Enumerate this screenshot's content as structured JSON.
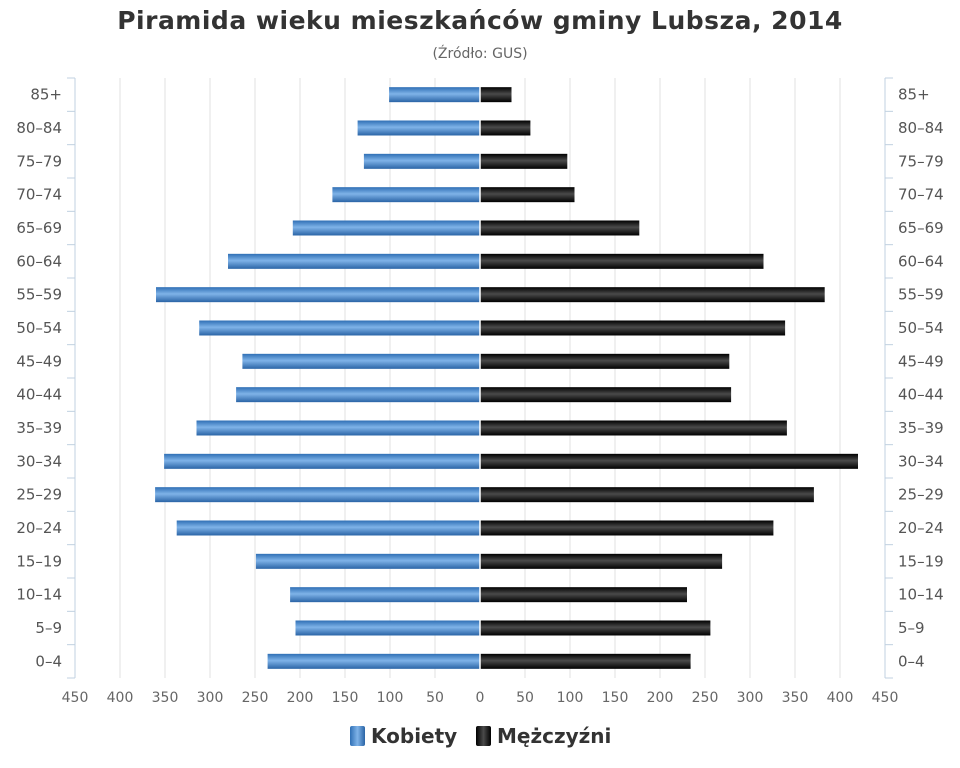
{
  "title": "Piramida wieku mieszkańców gminy Lubsza, 2014",
  "subtitle": "(Źródło: GUS)",
  "chart_data": {
    "type": "bar",
    "orientation": "horizontal-pyramid",
    "categories": [
      "0-4",
      "5-9",
      "10-14",
      "15-19",
      "20-24",
      "25-29",
      "30-34",
      "35-39",
      "40-44",
      "45-49",
      "50-54",
      "55-59",
      "60-64",
      "65-69",
      "70-74",
      "75-79",
      "80-84",
      "85+"
    ],
    "category_labels": [
      "0–4",
      "5–9",
      "10–14",
      "15–19",
      "20–24",
      "25–29",
      "30–34",
      "35–39",
      "40–44",
      "45–49",
      "50–54",
      "55–59",
      "60–64",
      "65–69",
      "70–74",
      "75–79",
      "80–84",
      "85+"
    ],
    "series": [
      {
        "name": "Kobiety",
        "side": "left",
        "color": "#4a8fd4",
        "values": [
          236,
          205,
          211,
          249,
          337,
          361,
          351,
          315,
          271,
          264,
          312,
          360,
          280,
          208,
          164,
          129,
          136,
          101
        ]
      },
      {
        "name": "Mężczyźni",
        "side": "right",
        "color": "#1a1a1a",
        "values": [
          234,
          256,
          230,
          269,
          326,
          371,
          420,
          341,
          279,
          277,
          339,
          383,
          315,
          177,
          105,
          97,
          56,
          35
        ]
      }
    ],
    "x_ticks": [
      "450",
      "400",
      "350",
      "300",
      "250",
      "200",
      "150",
      "100",
      "50",
      "0",
      "50",
      "100",
      "150",
      "200",
      "250",
      "300",
      "350",
      "400",
      "450"
    ],
    "xlim": [
      -450,
      450
    ],
    "grid": true,
    "legend_position": "bottom-center"
  }
}
